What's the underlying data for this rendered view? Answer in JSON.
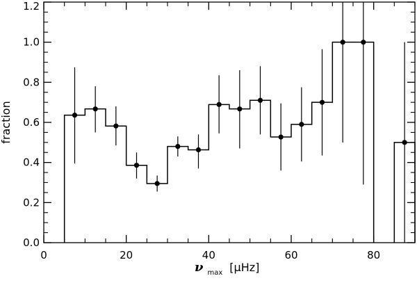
{
  "chart_data": {
    "type": "line",
    "style": "step histogram with error bars",
    "x": [
      7.5,
      12.5,
      17.5,
      22.5,
      27.5,
      32.5,
      37.5,
      42.5,
      47.5,
      52.5,
      57.5,
      62.5,
      67.5,
      72.5,
      77.5,
      87.5
    ],
    "y": [
      0.636,
      0.667,
      0.582,
      0.386,
      0.295,
      0.48,
      0.463,
      0.689,
      0.667,
      0.71,
      0.527,
      0.59,
      0.7,
      1.0,
      1.0,
      0.5
    ],
    "y_low": [
      0.395,
      0.55,
      0.485,
      0.32,
      0.255,
      0.43,
      0.37,
      0.545,
      0.47,
      0.54,
      0.36,
      0.405,
      0.435,
      0.5,
      0.29,
      0.0
    ],
    "y_high": [
      0.875,
      0.78,
      0.68,
      0.45,
      0.335,
      0.53,
      0.54,
      0.835,
      0.86,
      0.88,
      0.695,
      0.775,
      0.965,
      1.2,
      1.2,
      1.0
    ],
    "bin_width": 5,
    "xlabel_symbol": "ν",
    "xlabel_subscript": "max",
    "xlabel_unit": "[μHz]",
    "ylabel": "fraction",
    "xlim": [
      0,
      90
    ],
    "ylim": [
      0,
      1.2
    ],
    "xticks": [
      0,
      20,
      40,
      60,
      80
    ],
    "xtick_labels": [
      "0",
      "20",
      "40",
      "60",
      "80"
    ],
    "yticks": [
      0,
      0.2,
      0.4,
      0.6,
      0.8,
      1.0,
      1.2
    ],
    "ytick_labels": [
      "0.0",
      "0.2",
      "0.4",
      "0.6",
      "0.8",
      "1.0",
      "1.2"
    ],
    "grid": false,
    "line_color": "#000000"
  }
}
